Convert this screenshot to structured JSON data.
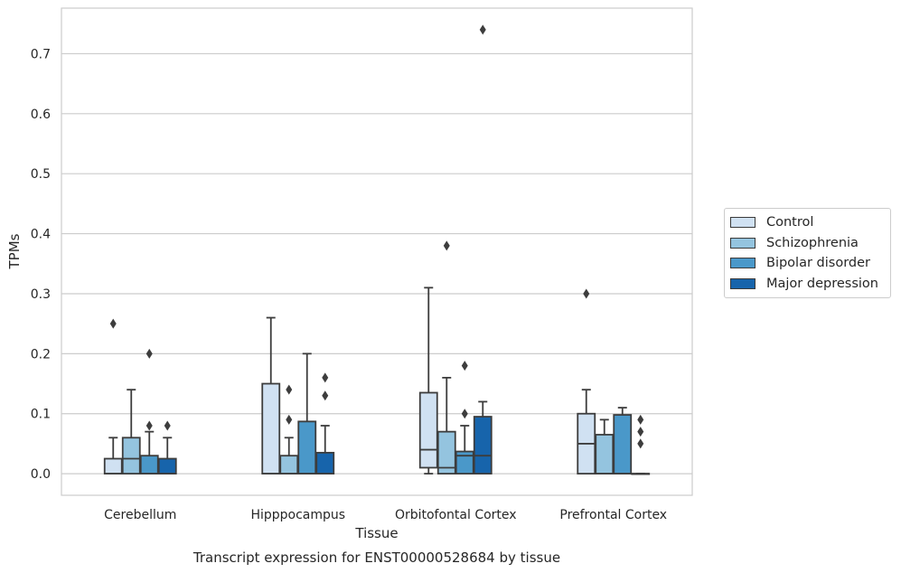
{
  "chart_data": {
    "type": "box",
    "title": "",
    "caption": "Transcript expression for ENST00000528684 by tissue",
    "xlabel": "Tissue",
    "ylabel": "TPMs",
    "ylim": [
      -0.036,
      0.776
    ],
    "yticks": [
      0.0,
      0.1,
      0.2,
      0.3,
      0.4,
      0.5,
      0.6,
      0.7
    ],
    "ytick_labels": [
      "0.0",
      "0.1",
      "0.2",
      "0.3",
      "0.4",
      "0.5",
      "0.6",
      "0.7"
    ],
    "grid": "horizontal",
    "legend_position": "right",
    "categories": [
      "Cerebellum",
      "Hipppocampus",
      "Orbitofontal Cortex",
      "Prefrontal Cortex"
    ],
    "series": [
      {
        "name": "Control",
        "color": "#d0e1f2",
        "boxes": [
          {
            "whislo": 0.0,
            "q1": 0.0,
            "med": 0.0,
            "q3": 0.025,
            "whishi": 0.06,
            "fliers": [
              0.25
            ]
          },
          {
            "whislo": 0.0,
            "q1": 0.0,
            "med": 0.0,
            "q3": 0.15,
            "whishi": 0.26,
            "fliers": []
          },
          {
            "whislo": 0.0,
            "q1": 0.01,
            "med": 0.04,
            "q3": 0.135,
            "whishi": 0.31,
            "fliers": []
          },
          {
            "whislo": 0.0,
            "q1": 0.0,
            "med": 0.05,
            "q3": 0.1,
            "whishi": 0.14,
            "fliers": [
              0.3
            ]
          }
        ]
      },
      {
        "name": "Schizophrenia",
        "color": "#94c4df",
        "boxes": [
          {
            "whislo": 0.0,
            "q1": 0.0,
            "med": 0.025,
            "q3": 0.06,
            "whishi": 0.14,
            "fliers": []
          },
          {
            "whislo": 0.0,
            "q1": 0.0,
            "med": 0.0,
            "q3": 0.03,
            "whishi": 0.06,
            "fliers": [
              0.09,
              0.14
            ]
          },
          {
            "whislo": 0.0,
            "q1": 0.0,
            "med": 0.01,
            "q3": 0.07,
            "whishi": 0.16,
            "fliers": [
              0.38
            ]
          },
          {
            "whislo": 0.0,
            "q1": 0.0,
            "med": 0.0,
            "q3": 0.065,
            "whishi": 0.09,
            "fliers": []
          }
        ]
      },
      {
        "name": "Bipolar disorder",
        "color": "#4a98c9",
        "boxes": [
          {
            "whislo": 0.0,
            "q1": 0.0,
            "med": 0.0,
            "q3": 0.03,
            "whishi": 0.07,
            "fliers": [
              0.08,
              0.2
            ]
          },
          {
            "whislo": 0.0,
            "q1": 0.0,
            "med": 0.0,
            "q3": 0.087,
            "whishi": 0.2,
            "fliers": []
          },
          {
            "whislo": 0.0,
            "q1": 0.0,
            "med": 0.03,
            "q3": 0.037,
            "whishi": 0.08,
            "fliers": [
              0.1,
              0.18
            ]
          },
          {
            "whislo": 0.0,
            "q1": 0.0,
            "med": 0.0,
            "q3": 0.098,
            "whishi": 0.11,
            "fliers": []
          }
        ]
      },
      {
        "name": "Major depression",
        "color": "#1764ab",
        "boxes": [
          {
            "whislo": 0.0,
            "q1": 0.0,
            "med": 0.0,
            "q3": 0.025,
            "whishi": 0.06,
            "fliers": [
              0.08
            ]
          },
          {
            "whislo": 0.0,
            "q1": 0.0,
            "med": 0.0,
            "q3": 0.035,
            "whishi": 0.08,
            "fliers": [
              0.13,
              0.16
            ]
          },
          {
            "whislo": 0.0,
            "q1": 0.0,
            "med": 0.03,
            "q3": 0.095,
            "whishi": 0.12,
            "fliers": [
              0.74
            ]
          },
          {
            "whislo": 0.0,
            "q1": 0.0,
            "med": 0.0,
            "q3": 0.0,
            "whishi": 0.0,
            "fliers": [
              0.05,
              0.07,
              0.09
            ]
          }
        ]
      }
    ]
  }
}
